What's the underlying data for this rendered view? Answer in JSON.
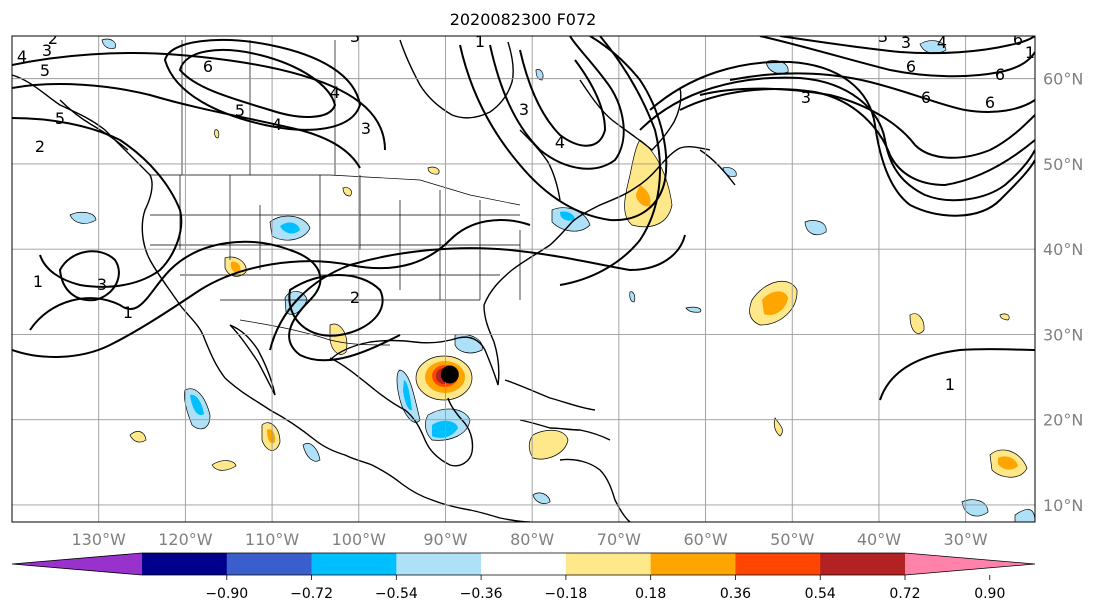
{
  "title": "2020082300 F072",
  "map": {
    "lon_range": [
      -140,
      -22
    ],
    "lat_range": [
      8,
      65
    ],
    "lon_labels": [
      "130°W",
      "120°W",
      "110°W",
      "100°W",
      "90°W",
      "80°W",
      "70°W",
      "60°W",
      "50°W",
      "40°W",
      "30°W"
    ],
    "lat_labels": [
      "60°N",
      "50°N",
      "40°N",
      "30°N",
      "20°N",
      "10°N"
    ],
    "contour_labels": [
      "2",
      "3",
      "4",
      "5",
      "6",
      "5",
      "4",
      "3",
      "6",
      "6",
      "3",
      "4",
      "3",
      "1",
      "1",
      "2",
      "3",
      "1",
      "5",
      "6",
      "2",
      "1",
      "6",
      "6",
      "3",
      "4",
      "3",
      "3",
      "1",
      "4"
    ],
    "storm_center": {
      "lon": -89.5,
      "lat": 25.3
    }
  },
  "colorbar": {
    "ticks": [
      "−0.90",
      "−0.72",
      "−0.54",
      "−0.36",
      "−0.18",
      "0.18",
      "0.36",
      "0.54",
      "0.72",
      "0.90"
    ],
    "colors": [
      "#9932cc",
      "#00008b",
      "#3a5fcd",
      "#00bfff",
      "#aee0f8",
      "#ffffff",
      "#ffe88a",
      "#ffa500",
      "#ff4500",
      "#b22222",
      "#ff82ab"
    ]
  }
}
